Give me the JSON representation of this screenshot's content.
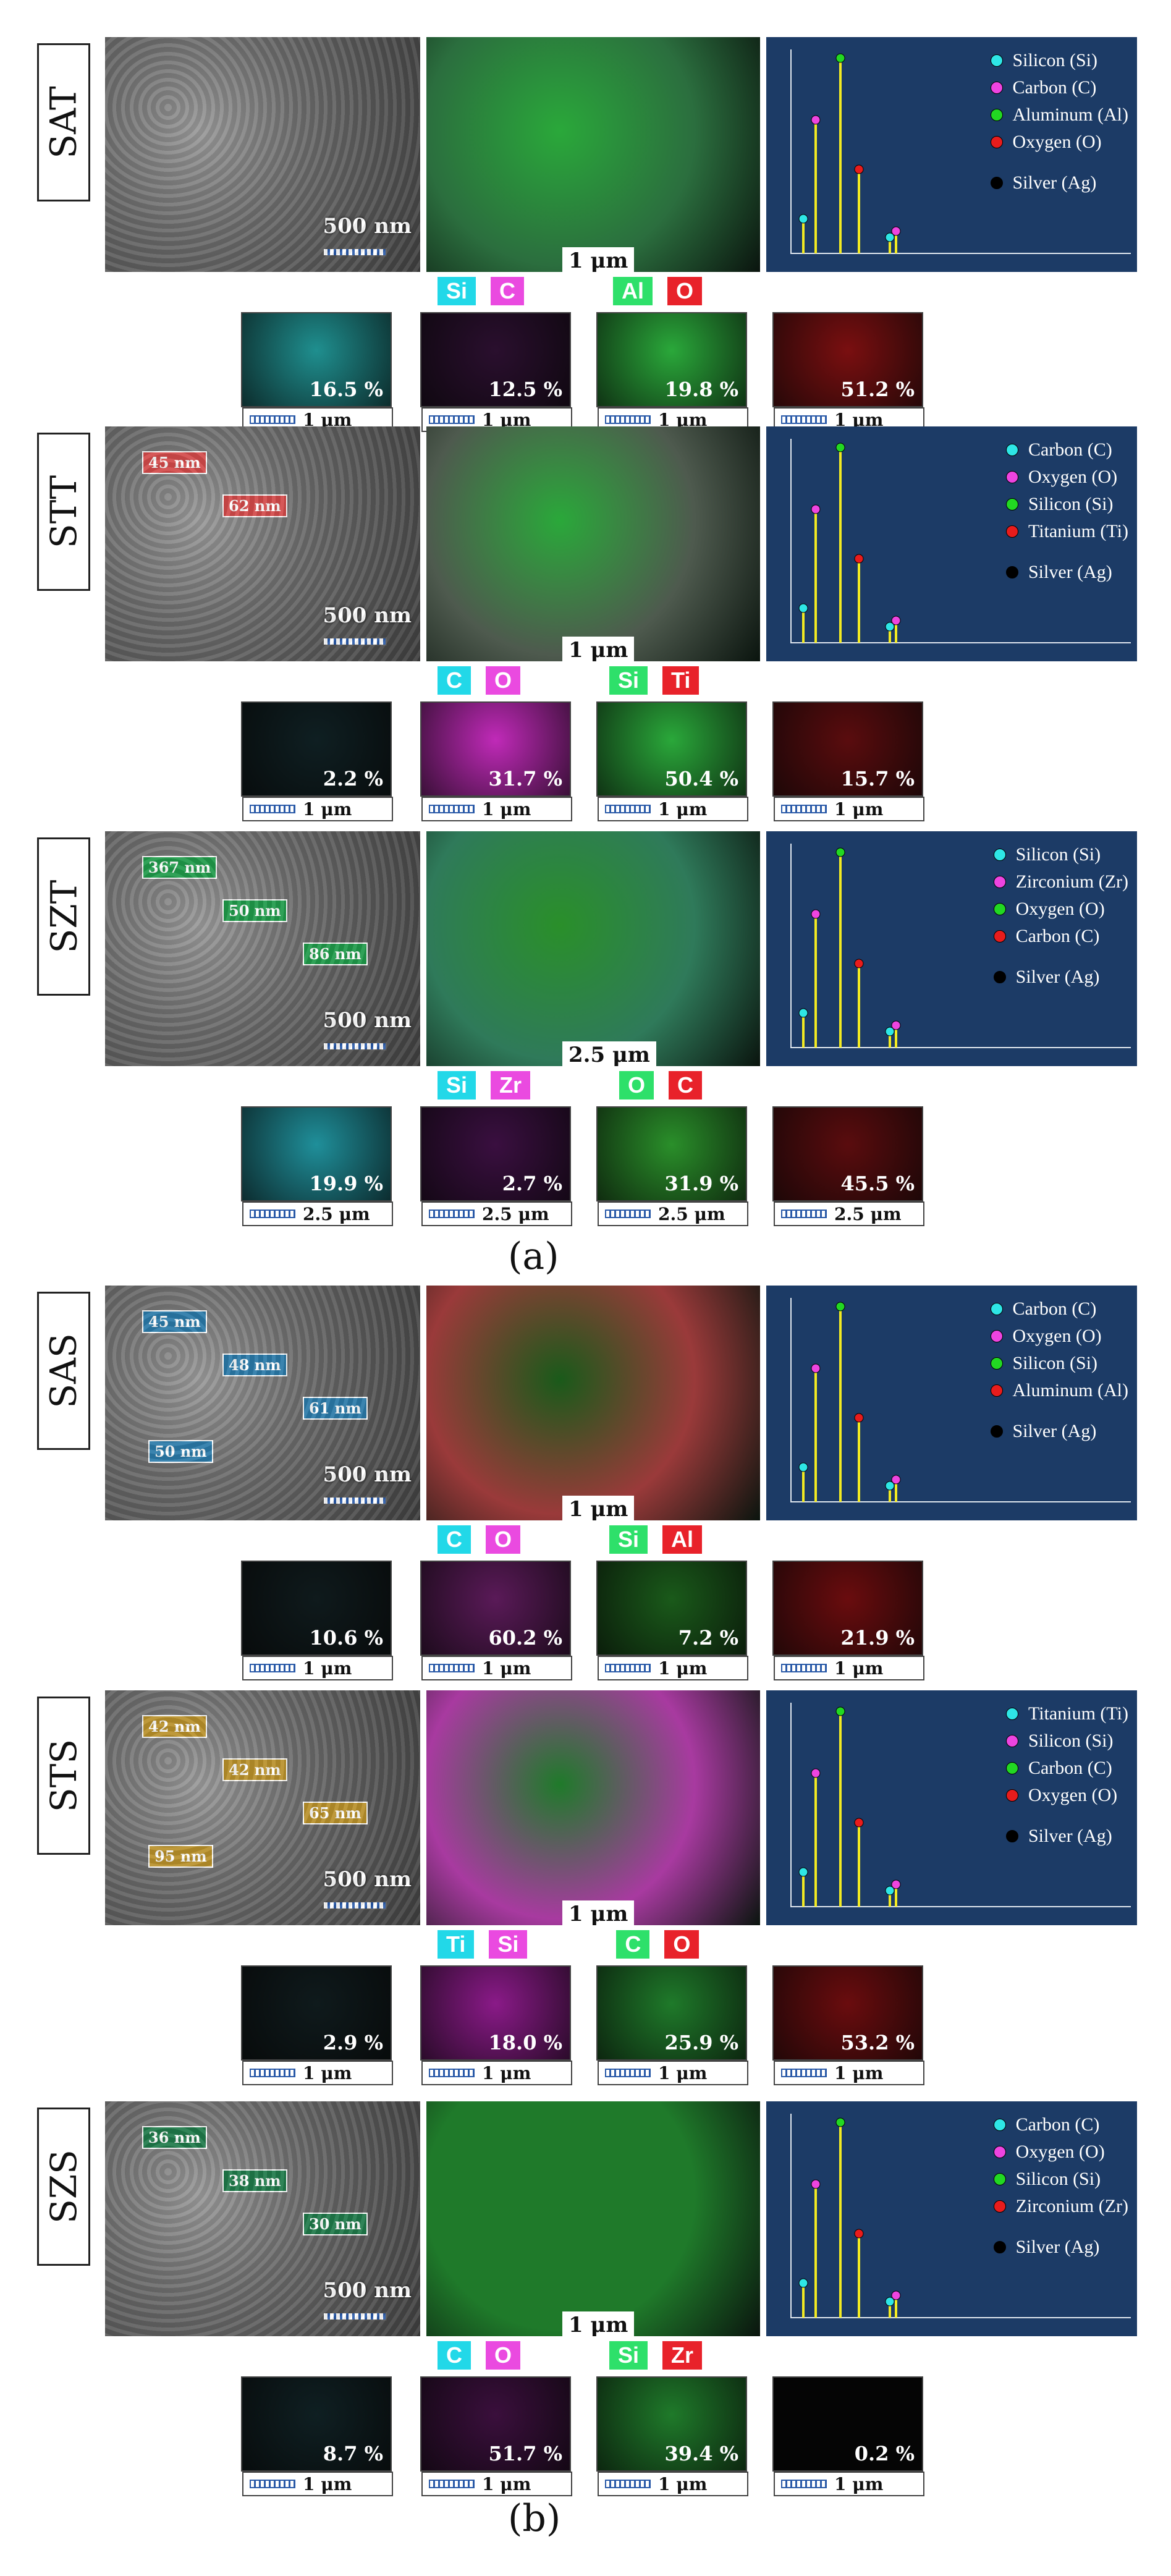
{
  "captions": {
    "a": "(a)",
    "b": "(b)"
  },
  "panels": [
    {
      "id": "SAT",
      "label": "SAT",
      "sem_scale": "500 nm",
      "map_scale_main": "1 μm",
      "map_scale_small": "1 μm",
      "tags": [
        {
          "text": "Si",
          "color": "#22d8e8"
        },
        {
          "text": "C",
          "color": "#ea4ae0"
        },
        {
          "text": "Al",
          "color": "#2ee06a"
        },
        {
          "text": "O",
          "color": "#e8222a"
        }
      ],
      "maps": [
        {
          "pct": "16.5 %",
          "color": "#1f8f8f"
        },
        {
          "pct": "12.5 %",
          "color": "#2a0f2e"
        },
        {
          "pct": "19.8 %",
          "color": "#2aa83a"
        },
        {
          "pct": "51.2 %",
          "color": "#7a0f10"
        }
      ],
      "eds_color": "#2b6e3e",
      "legend": [
        {
          "text": "Silicon (Si)",
          "color": "#2ee6e6"
        },
        {
          "text": "Carbon (C)",
          "color": "#ee44e0"
        },
        {
          "text": "Aluminum (Al)",
          "color": "#22d822"
        },
        {
          "text": "Oxygen (O)",
          "color": "#e81c1c"
        },
        {
          "text": "",
          "color": ""
        },
        {
          "text": "Silver (Ag)",
          "color": "#000000"
        }
      ],
      "annotations": []
    },
    {
      "id": "STT",
      "label": "STT",
      "sem_scale": "500 nm",
      "map_scale_main": "1 μm",
      "map_scale_small": "1 μm",
      "tags": [
        {
          "text": "C",
          "color": "#22d8e8"
        },
        {
          "text": "O",
          "color": "#ea4ae0"
        },
        {
          "text": "Si",
          "color": "#2ee06a"
        },
        {
          "text": "Ti",
          "color": "#e8222a"
        }
      ],
      "maps": [
        {
          "pct": "2.2 %",
          "color": "#0f1f22"
        },
        {
          "pct": "31.7 %",
          "color": "#c02ab8"
        },
        {
          "pct": "50.4 %",
          "color": "#2aa83a"
        },
        {
          "pct": "15.7 %",
          "color": "#5a0c0e"
        }
      ],
      "eds_color": "#4e5a4e",
      "legend": [
        {
          "text": "Carbon (C)",
          "color": "#2ee6e6"
        },
        {
          "text": "Oxygen (O)",
          "color": "#ee44e0"
        },
        {
          "text": "Silicon (Si)",
          "color": "#22d822"
        },
        {
          "text": "Titanium (Ti)",
          "color": "#e81c1c"
        },
        {
          "text": "",
          "color": ""
        },
        {
          "text": "Silver (Ag)",
          "color": "#000000"
        }
      ],
      "annotations": [
        {
          "text": "45 nm",
          "color": "#d24a4a"
        },
        {
          "text": "62 nm",
          "color": "#d24a4a"
        }
      ]
    },
    {
      "id": "SZT",
      "label": "SZT",
      "sem_scale": "500 nm",
      "map_scale_main": "2.5 μm",
      "map_scale_small": "2.5 μm",
      "tags": [
        {
          "text": "Si",
          "color": "#22d8e8"
        },
        {
          "text": "Zr",
          "color": "#ea4ae0"
        },
        {
          "text": "O",
          "color": "#2ee06a"
        },
        {
          "text": "C",
          "color": "#e8222a"
        }
      ],
      "maps": [
        {
          "pct": "19.9 %",
          "color": "#1f8f9a"
        },
        {
          "pct": "2.7 %",
          "color": "#3a0f40"
        },
        {
          "pct": "31.9 %",
          "color": "#2a8f2a"
        },
        {
          "pct": "45.5 %",
          "color": "#5a0c0e"
        }
      ],
      "eds_color": "#2f7a5a",
      "legend": [
        {
          "text": "Silicon (Si)",
          "color": "#2ee6e6"
        },
        {
          "text": "Zirconium (Zr)",
          "color": "#ee44e0"
        },
        {
          "text": "Oxygen (O)",
          "color": "#22d822"
        },
        {
          "text": "Carbon (C)",
          "color": "#e81c1c"
        },
        {
          "text": "",
          "color": ""
        },
        {
          "text": "Silver (Ag)",
          "color": "#000000"
        }
      ],
      "annotations": [
        {
          "text": "367 nm",
          "color": "#1f9a4a"
        },
        {
          "text": "50 nm",
          "color": "#1f9a4a"
        },
        {
          "text": "86 nm",
          "color": "#1f9a4a"
        }
      ]
    },
    {
      "id": "SAS",
      "label": "SAS",
      "sem_scale": "500 nm",
      "map_scale_main": "1 μm",
      "map_scale_small": "1 μm",
      "tags": [
        {
          "text": "C",
          "color": "#22d8e8"
        },
        {
          "text": "O",
          "color": "#ea4ae0"
        },
        {
          "text": "Si",
          "color": "#2ee06a"
        },
        {
          "text": "Al",
          "color": "#e8222a"
        }
      ],
      "maps": [
        {
          "pct": "10.6 %",
          "color": "#0f1a1c"
        },
        {
          "pct": "60.2 %",
          "color": "#5a1a58"
        },
        {
          "pct": "7.2 %",
          "color": "#1a5a1a"
        },
        {
          "pct": "21.9 %",
          "color": "#6a0c0e"
        }
      ],
      "eds_color": "#9a3a3a",
      "legend": [
        {
          "text": "Carbon (C)",
          "color": "#2ee6e6"
        },
        {
          "text": "Oxygen (O)",
          "color": "#ee44e0"
        },
        {
          "text": "Silicon (Si)",
          "color": "#22d822"
        },
        {
          "text": "Aluminum (Al)",
          "color": "#e81c1c"
        },
        {
          "text": "",
          "color": ""
        },
        {
          "text": "Silver (Ag)",
          "color": "#000000"
        }
      ],
      "annotations": [
        {
          "text": "45 nm",
          "color": "#2a7aa8"
        },
        {
          "text": "48 nm",
          "color": "#2a7aa8"
        },
        {
          "text": "61 nm",
          "color": "#2a7aa8"
        },
        {
          "text": "50 nm",
          "color": "#2a7aa8"
        }
      ]
    },
    {
      "id": "STS",
      "label": "STS",
      "sem_scale": "500 nm",
      "map_scale_main": "1 μm",
      "map_scale_small": "1 μm",
      "tags": [
        {
          "text": "Ti",
          "color": "#22d8e8"
        },
        {
          "text": "Si",
          "color": "#ea4ae0"
        },
        {
          "text": "C",
          "color": "#2ee06a"
        },
        {
          "text": "O",
          "color": "#e8222a"
        }
      ],
      "maps": [
        {
          "pct": "2.9 %",
          "color": "#0f1a1c"
        },
        {
          "pct": "18.0 %",
          "color": "#8a1a88"
        },
        {
          "pct": "25.9 %",
          "color": "#1f7a2a"
        },
        {
          "pct": "53.2 %",
          "color": "#6a0c0e"
        }
      ],
      "eds_color": "#a83aa0",
      "legend": [
        {
          "text": "Titanium (Ti)",
          "color": "#2ee6e6"
        },
        {
          "text": "Silicon (Si)",
          "color": "#ee44e0"
        },
        {
          "text": "Carbon (C)",
          "color": "#22d822"
        },
        {
          "text": "Oxygen (O)",
          "color": "#e81c1c"
        },
        {
          "text": "",
          "color": ""
        },
        {
          "text": "Silver (Ag)",
          "color": "#000000"
        }
      ],
      "annotations": [
        {
          "text": "42 nm",
          "color": "#b8902a"
        },
        {
          "text": "42 nm",
          "color": "#b8902a"
        },
        {
          "text": "65 nm",
          "color": "#b8902a"
        },
        {
          "text": "95 nm",
          "color": "#b8902a"
        }
      ]
    },
    {
      "id": "SZS",
      "label": "SZS",
      "sem_scale": "500 nm",
      "map_scale_main": "1 μm",
      "map_scale_small": "1 μm",
      "tags": [
        {
          "text": "C",
          "color": "#22d8e8"
        },
        {
          "text": "O",
          "color": "#ea4ae0"
        },
        {
          "text": "Si",
          "color": "#2ee06a"
        },
        {
          "text": "Zr",
          "color": "#e8222a"
        }
      ],
      "maps": [
        {
          "pct": "8.7 %",
          "color": "#0f1f22"
        },
        {
          "pct": "51.7 %",
          "color": "#3a0f3c"
        },
        {
          "pct": "39.4 %",
          "color": "#1f7a2a"
        },
        {
          "pct": "0.2 %",
          "color": "#050505"
        }
      ],
      "eds_color": "#1f7a2a",
      "legend": [
        {
          "text": "Carbon (C)",
          "color": "#2ee6e6"
        },
        {
          "text": "Oxygen (O)",
          "color": "#ee44e0"
        },
        {
          "text": "Silicon (Si)",
          "color": "#22d822"
        },
        {
          "text": "Zirconium (Zr)",
          "color": "#e81c1c"
        },
        {
          "text": "",
          "color": ""
        },
        {
          "text": "Silver (Ag)",
          "color": "#000000"
        }
      ],
      "annotations": [
        {
          "text": "36 nm",
          "color": "#1f7a4a"
        },
        {
          "text": "38 nm",
          "color": "#1f7a4a"
        },
        {
          "text": "30 nm",
          "color": "#1f7a4a"
        }
      ]
    }
  ]
}
